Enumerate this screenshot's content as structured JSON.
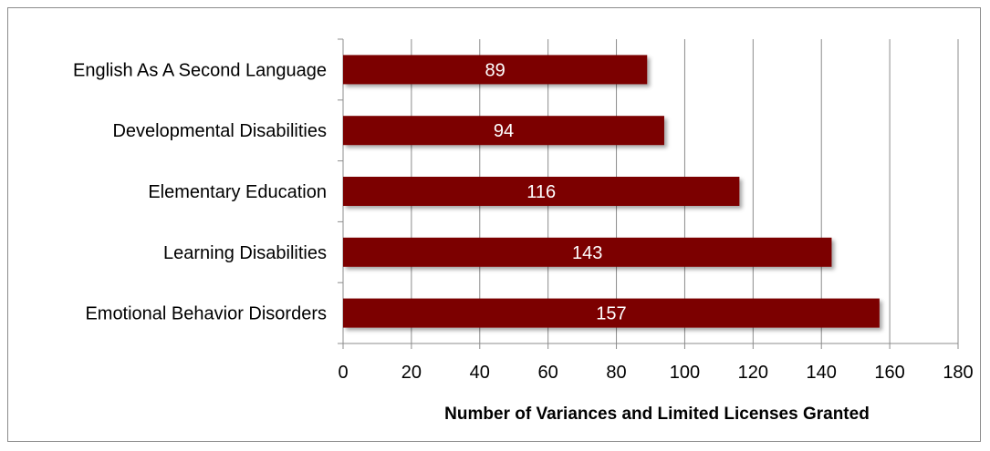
{
  "chart_data": {
    "type": "bar",
    "orientation": "horizontal",
    "categories": [
      "English As A Second Language",
      "Developmental Disabilities",
      "Elementary Education",
      "Learning Disabilities",
      "Emotional Behavior Disorders"
    ],
    "values": [
      89,
      94,
      116,
      143,
      157
    ],
    "data_labels": [
      "89",
      "94",
      "116",
      "143",
      "157"
    ],
    "xlabel": "Number of Variances and Limited Licenses Granted",
    "ylabel": "",
    "xlim": [
      0,
      180
    ],
    "x_ticks": [
      "0",
      "20",
      "40",
      "60",
      "80",
      "100",
      "120",
      "140",
      "160",
      "180"
    ],
    "grid": "vertical",
    "legend": "none",
    "colors": {
      "bar": "#7b0000",
      "gridline": "#8c8c8c",
      "axis": "#8c8c8c"
    }
  }
}
